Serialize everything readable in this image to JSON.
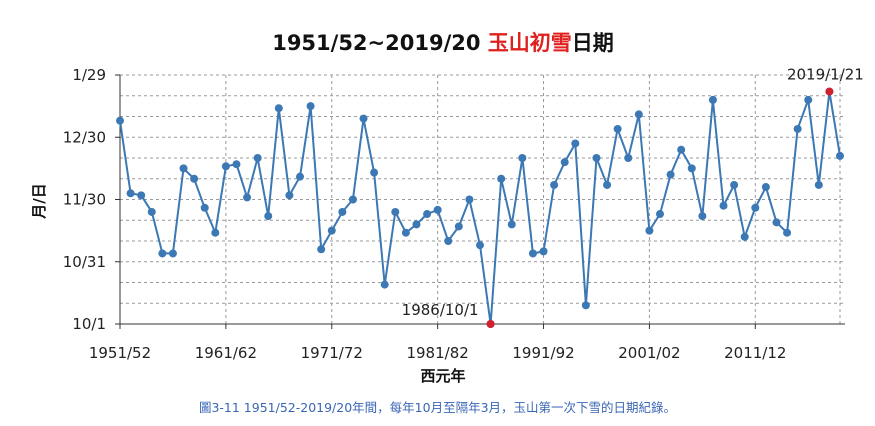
{
  "chart_data": {
    "type": "line",
    "title_part1": "1951/52~2019/20 ",
    "title_part2": "玉山初雪",
    "title_part3": "日期",
    "ylabel": "月/日",
    "xlabel": "西元年",
    "x_tick_labels": [
      "1951/52",
      "1961/62",
      "1971/72",
      "1981/82",
      "1991/92",
      "2001/02",
      "2011/12"
    ],
    "y_tick_labels": [
      "10/1",
      "10/31",
      "11/30",
      "12/30",
      "1/29"
    ],
    "y_axis_unit": "days after Oct 1",
    "ylim": [
      0,
      120
    ],
    "grid": true,
    "series": [
      {
        "values": [
          98,
          63,
          62,
          54,
          34,
          34,
          75,
          70,
          56,
          44,
          76,
          77,
          61,
          80,
          52,
          104,
          62,
          71,
          105,
          36,
          45,
          54,
          60,
          99,
          73,
          19,
          54,
          44,
          48,
          53,
          55,
          40,
          47,
          60,
          38,
          0,
          70,
          48,
          80,
          34,
          35,
          67,
          78,
          87,
          9,
          80,
          67,
          94,
          80,
          101,
          45,
          53,
          72,
          84,
          75,
          52,
          108,
          57,
          67,
          42,
          56,
          66,
          49,
          44,
          94,
          108,
          67,
          112,
          81
        ],
        "color": "#3b78b4"
      }
    ],
    "highlights": [
      {
        "label": "1986/10/1",
        "value": 0,
        "color": "#d3202f"
      },
      {
        "label": "2019/1/21",
        "value": 112,
        "color": "#d3202f"
      }
    ],
    "title_highlight_color": "#e0201f"
  },
  "caption": "圖3-11 1951/52-2019/20年間，每年10月至隔年3月，玉山第一次下雪的日期紀錄。"
}
